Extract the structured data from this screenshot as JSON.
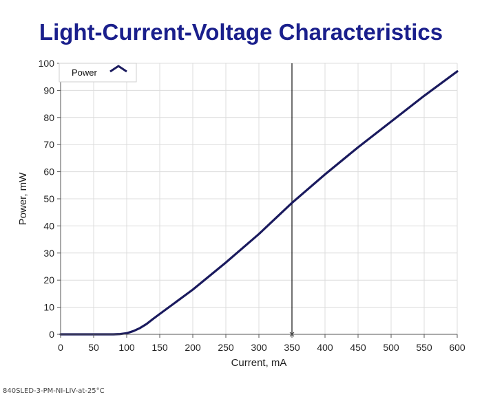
{
  "chart_data": {
    "type": "line",
    "title": "Light-Current-Voltage Characteristics",
    "xlabel": "Current, mA",
    "ylabel": "Power, mW",
    "xlim": [
      0,
      600
    ],
    "ylim": [
      0,
      100
    ],
    "xticks": [
      0,
      50,
      100,
      150,
      200,
      250,
      300,
      350,
      400,
      450,
      500,
      550,
      600
    ],
    "yticks": [
      0,
      10,
      20,
      30,
      40,
      50,
      60,
      70,
      80,
      90,
      100
    ],
    "grid": true,
    "legend_position": "top-left",
    "cursor_x": 350,
    "series": [
      {
        "name": "Power",
        "color": "#1a1a5e",
        "x": [
          0,
          80,
          90,
          100,
          110,
          120,
          130,
          140,
          150,
          175,
          200,
          250,
          300,
          350,
          400,
          450,
          500,
          550,
          600
        ],
        "y": [
          0,
          0,
          0.1,
          0.4,
          1.2,
          2.3,
          3.8,
          5.7,
          7.5,
          12.0,
          16.5,
          26.5,
          37.0,
          48.5,
          59.0,
          69.0,
          78.5,
          88.0,
          97.0
        ]
      }
    ]
  },
  "footer": {
    "caption": "840SLED-3-PM-NI-LIV-at-25°C"
  }
}
